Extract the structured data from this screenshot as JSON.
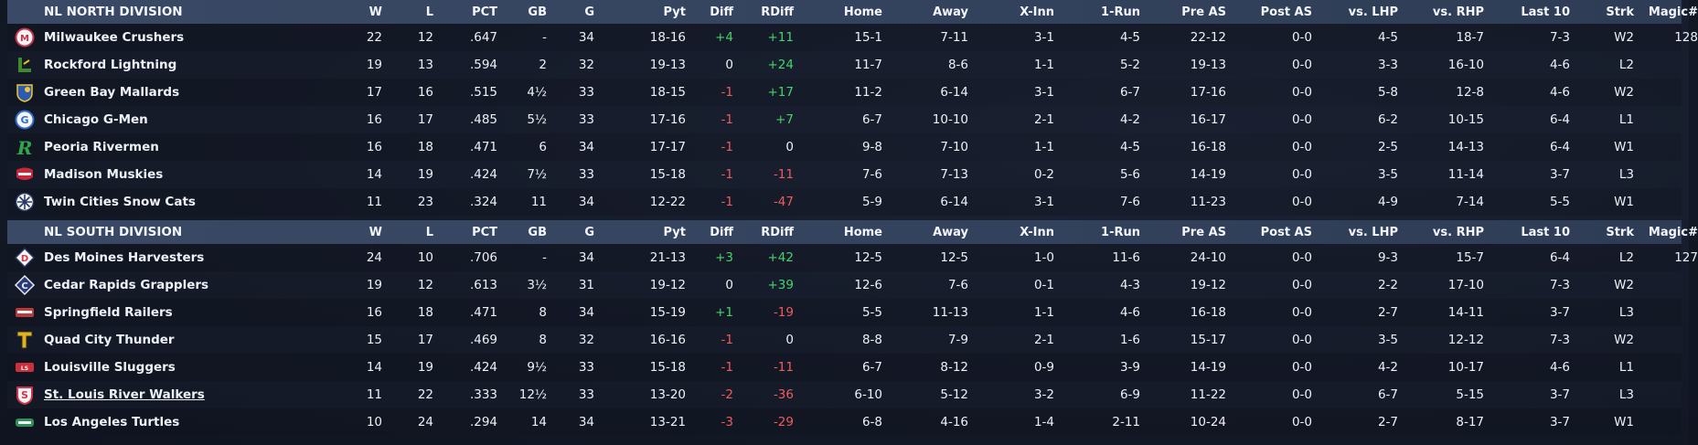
{
  "columns": [
    "W",
    "L",
    "PCT",
    "GB",
    "G",
    "Pyt",
    "Diff",
    "RDiff",
    "Home",
    "Away",
    "X-Inn",
    "1-Run",
    "Pre AS",
    "Post AS",
    "vs. LHP",
    "vs. RHP",
    "Last 10",
    "Strk",
    "Magic#"
  ],
  "divisions": [
    {
      "name": "NL NORTH DIVISION",
      "teams": [
        {
          "logo": "crushers-logo",
          "logo_color": "#c8324a",
          "name": "Milwaukee Crushers",
          "W": "22",
          "L": "12",
          "PCT": ".647",
          "GB": "-",
          "G": "34",
          "Pyt": "18-16",
          "Diff": "+4",
          "RDiff": "+11",
          "Home": "15-1",
          "Away": "7-11",
          "XInn": "3-1",
          "OneRun": "4-5",
          "PreAS": "22-12",
          "PostAS": "0-0",
          "vsLHP": "4-5",
          "vsRHP": "18-7",
          "Last10": "7-3",
          "Strk": "W2",
          "Magic": "128"
        },
        {
          "logo": "lightning-logo",
          "logo_color": "#3f8a2c",
          "name": "Rockford Lightning",
          "W": "19",
          "L": "13",
          "PCT": ".594",
          "GB": "2",
          "G": "32",
          "Pyt": "19-13",
          "Diff": "0",
          "RDiff": "+24",
          "Home": "11-7",
          "Away": "8-6",
          "XInn": "1-1",
          "OneRun": "5-2",
          "PreAS": "19-13",
          "PostAS": "0-0",
          "vsLHP": "3-3",
          "vsRHP": "16-10",
          "Last10": "4-6",
          "Strk": "L2",
          "Magic": ""
        },
        {
          "logo": "mallards-logo",
          "logo_color": "#2a5bb0",
          "name": "Green Bay  Mallards",
          "W": "17",
          "L": "16",
          "PCT": ".515",
          "GB": "4½",
          "G": "33",
          "Pyt": "18-15",
          "Diff": "-1",
          "RDiff": "+17",
          "Home": "11-2",
          "Away": "6-14",
          "XInn": "3-1",
          "OneRun": "6-7",
          "PreAS": "17-16",
          "PostAS": "0-0",
          "vsLHP": "5-8",
          "vsRHP": "12-8",
          "Last10": "4-6",
          "Strk": "W2",
          "Magic": ""
        },
        {
          "logo": "gmen-logo",
          "logo_color": "#2d6fd0",
          "name": "Chicago G-Men",
          "W": "16",
          "L": "17",
          "PCT": ".485",
          "GB": "5½",
          "G": "33",
          "Pyt": "17-16",
          "Diff": "-1",
          "RDiff": "+7",
          "Home": "6-7",
          "Away": "10-10",
          "XInn": "2-1",
          "OneRun": "4-2",
          "PreAS": "16-17",
          "PostAS": "0-0",
          "vsLHP": "6-2",
          "vsRHP": "10-15",
          "Last10": "6-4",
          "Strk": "L1",
          "Magic": ""
        },
        {
          "logo": "rivermen-logo",
          "logo_color": "#2fa84a",
          "name": "Peoria Rivermen",
          "W": "16",
          "L": "18",
          "PCT": ".471",
          "GB": "6",
          "G": "34",
          "Pyt": "17-17",
          "Diff": "-1",
          "RDiff": "0",
          "Home": "9-8",
          "Away": "7-10",
          "XInn": "1-1",
          "OneRun": "4-5",
          "PreAS": "16-18",
          "PostAS": "0-0",
          "vsLHP": "2-5",
          "vsRHP": "14-13",
          "Last10": "6-4",
          "Strk": "W1",
          "Magic": ""
        },
        {
          "logo": "muskies-logo",
          "logo_color": "#c6283a",
          "name": "Madison Muskies",
          "W": "14",
          "L": "19",
          "PCT": ".424",
          "GB": "7½",
          "G": "33",
          "Pyt": "15-18",
          "Diff": "-1",
          "RDiff": "-11",
          "Home": "7-6",
          "Away": "7-13",
          "XInn": "0-2",
          "OneRun": "5-6",
          "PreAS": "14-19",
          "PostAS": "0-0",
          "vsLHP": "3-5",
          "vsRHP": "11-14",
          "Last10": "3-7",
          "Strk": "L3",
          "Magic": ""
        },
        {
          "logo": "snowcats-logo",
          "logo_color": "#8fa3c0",
          "name": "Twin Cities Snow Cats",
          "W": "11",
          "L": "23",
          "PCT": ".324",
          "GB": "11",
          "G": "34",
          "Pyt": "12-22",
          "Diff": "-1",
          "RDiff": "-47",
          "Home": "5-9",
          "Away": "6-14",
          "XInn": "3-1",
          "OneRun": "7-6",
          "PreAS": "11-23",
          "PostAS": "0-0",
          "vsLHP": "4-9",
          "vsRHP": "7-14",
          "Last10": "5-5",
          "Strk": "W1",
          "Magic": ""
        }
      ]
    },
    {
      "name": "NL SOUTH DIVISION",
      "teams": [
        {
          "logo": "harvesters-logo",
          "logo_color": "#d23a4a",
          "name": "Des Moines Harvesters",
          "W": "24",
          "L": "10",
          "PCT": ".706",
          "GB": "-",
          "G": "34",
          "Pyt": "21-13",
          "Diff": "+3",
          "RDiff": "+42",
          "Home": "12-5",
          "Away": "12-5",
          "XInn": "1-0",
          "OneRun": "11-6",
          "PreAS": "24-10",
          "PostAS": "0-0",
          "vsLHP": "9-3",
          "vsRHP": "15-7",
          "Last10": "6-4",
          "Strk": "L2",
          "Magic": "127"
        },
        {
          "logo": "grapplers-logo",
          "logo_color": "#2a3a78",
          "name": "Cedar Rapids Grapplers",
          "W": "19",
          "L": "12",
          "PCT": ".613",
          "GB": "3½",
          "G": "31",
          "Pyt": "19-12",
          "Diff": "0",
          "RDiff": "+39",
          "Home": "12-6",
          "Away": "7-6",
          "XInn": "0-1",
          "OneRun": "4-3",
          "PreAS": "19-12",
          "PostAS": "0-0",
          "vsLHP": "2-2",
          "vsRHP": "17-10",
          "Last10": "7-3",
          "Strk": "W2",
          "Magic": ""
        },
        {
          "logo": "railers-logo",
          "logo_color": "#b83a3a",
          "name": "Springfield Railers",
          "W": "16",
          "L": "18",
          "PCT": ".471",
          "GB": "8",
          "G": "34",
          "Pyt": "15-19",
          "Diff": "+1",
          "RDiff": "-19",
          "Home": "5-5",
          "Away": "11-13",
          "XInn": "1-1",
          "OneRun": "4-6",
          "PreAS": "16-18",
          "PostAS": "0-0",
          "vsLHP": "2-7",
          "vsRHP": "14-11",
          "Last10": "3-7",
          "Strk": "L3",
          "Magic": ""
        },
        {
          "logo": "thunder-logo",
          "logo_color": "#e2b41c",
          "name": "Quad City Thunder",
          "W": "15",
          "L": "17",
          "PCT": ".469",
          "GB": "8",
          "G": "32",
          "Pyt": "16-16",
          "Diff": "-1",
          "RDiff": "0",
          "Home": "8-8",
          "Away": "7-9",
          "XInn": "2-1",
          "OneRun": "1-6",
          "PreAS": "15-17",
          "PostAS": "0-0",
          "vsLHP": "3-5",
          "vsRHP": "12-12",
          "Last10": "7-3",
          "Strk": "W2",
          "Magic": ""
        },
        {
          "logo": "sluggers-logo",
          "logo_color": "#cc2f3c",
          "name": "Louisville Sluggers",
          "W": "14",
          "L": "19",
          "PCT": ".424",
          "GB": "9½",
          "G": "33",
          "Pyt": "15-18",
          "Diff": "-1",
          "RDiff": "-11",
          "Home": "6-7",
          "Away": "8-12",
          "XInn": "0-9",
          "OneRun": "3-9",
          "PreAS": "14-19",
          "PostAS": "0-0",
          "vsLHP": "4-2",
          "vsRHP": "10-17",
          "Last10": "4-6",
          "Strk": "L1",
          "Magic": ""
        },
        {
          "logo": "riverwalkers-logo",
          "logo_color": "#d0334a",
          "name": "St. Louis River Walkers",
          "link": true,
          "W": "11",
          "L": "22",
          "PCT": ".333",
          "GB": "12½",
          "G": "33",
          "Pyt": "13-20",
          "Diff": "-2",
          "RDiff": "-36",
          "Home": "6-10",
          "Away": "5-12",
          "XInn": "3-2",
          "OneRun": "6-9",
          "PreAS": "11-22",
          "PostAS": "0-0",
          "vsLHP": "6-7",
          "vsRHP": "5-15",
          "Last10": "3-7",
          "Strk": "L3",
          "Magic": ""
        },
        {
          "logo": "turtles-logo",
          "logo_color": "#2e8f5a",
          "name": "Los Angeles Turtles",
          "W": "10",
          "L": "24",
          "PCT": ".294",
          "GB": "14",
          "G": "34",
          "Pyt": "13-21",
          "Diff": "-3",
          "RDiff": "-29",
          "Home": "6-8",
          "Away": "4-16",
          "XInn": "1-4",
          "OneRun": "2-11",
          "PreAS": "10-24",
          "PostAS": "0-0",
          "vsLHP": "2-7",
          "vsRHP": "8-17",
          "Last10": "3-7",
          "Strk": "W1",
          "Magic": ""
        }
      ]
    }
  ]
}
